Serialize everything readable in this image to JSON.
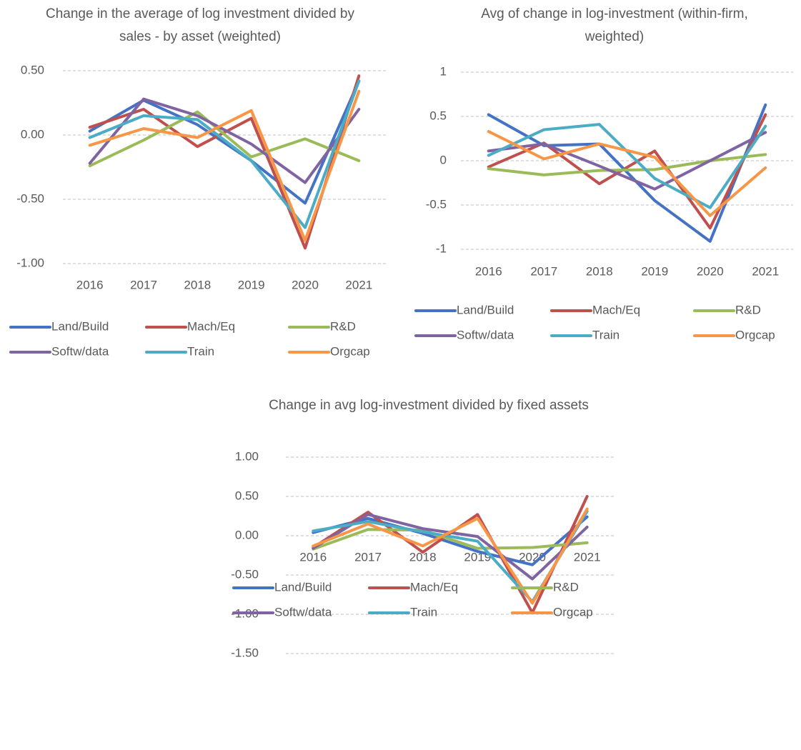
{
  "chart_data": [
    {
      "type": "line",
      "title": "Change in the average of log investment divided by sales - by asset (weighted)",
      "categories": [
        "2016",
        "2017",
        "2018",
        "2019",
        "2020",
        "2021"
      ],
      "ylim": [
        -1,
        0.5
      ],
      "yticks": [
        {
          "value": -1,
          "label": "-1.00"
        },
        {
          "value": -0.5,
          "label": "-0.50"
        },
        {
          "value": 0,
          "label": "0.00"
        },
        {
          "value": 0.5,
          "label": "0.50"
        }
      ],
      "grid": true,
      "series": [
        {
          "name": "Land/Build",
          "color": "#4472c4",
          "values": [
            0.03,
            0.27,
            0.08,
            -0.2,
            -0.53,
            0.42
          ]
        },
        {
          "name": "Mach/Eq",
          "color": "#c0504d",
          "values": [
            0.06,
            0.2,
            -0.09,
            0.13,
            -0.88,
            0.46
          ]
        },
        {
          "name": "R&D",
          "color": "#9bbb59",
          "values": [
            -0.24,
            -0.04,
            0.18,
            -0.17,
            -0.03,
            -0.2
          ]
        },
        {
          "name": "Softw/data",
          "color": "#8064a2",
          "values": [
            -0.22,
            0.28,
            0.15,
            -0.07,
            -0.37,
            0.2
          ]
        },
        {
          "name": "Train",
          "color": "#4bacc6",
          "values": [
            -0.02,
            0.15,
            0.12,
            -0.2,
            -0.72,
            0.42
          ]
        },
        {
          "name": "Orgcap",
          "color": "#f79646",
          "values": [
            -0.08,
            0.05,
            -0.02,
            0.19,
            -0.82,
            0.34
          ]
        }
      ]
    },
    {
      "type": "line",
      "title": "Avg of change in log-investment (within-firm, weighted)",
      "categories": [
        "2016",
        "2017",
        "2018",
        "2019",
        "2020",
        "2021"
      ],
      "ylim": [
        -1,
        1
      ],
      "yticks": [
        -1,
        -0.5,
        0,
        0.5,
        1
      ],
      "grid": true,
      "series": [
        {
          "name": "Land/Build",
          "color": "#4472c4",
          "values": [
            0.52,
            0.17,
            0.19,
            -0.45,
            -0.91,
            0.63
          ]
        },
        {
          "name": "Mach/Eq",
          "color": "#c0504d",
          "values": [
            -0.07,
            0.2,
            -0.26,
            0.11,
            -0.76,
            0.52
          ]
        },
        {
          "name": "R&D",
          "color": "#9bbb59",
          "values": [
            -0.09,
            -0.16,
            -0.11,
            -0.1,
            0.0,
            0.07
          ]
        },
        {
          "name": "Softw/data",
          "color": "#8064a2",
          "values": [
            0.11,
            0.19,
            -0.06,
            -0.32,
            0.0,
            0.32
          ]
        },
        {
          "name": "Train",
          "color": "#4bacc6",
          "values": [
            0.06,
            0.35,
            0.41,
            -0.2,
            -0.53,
            0.39
          ]
        },
        {
          "name": "Orgcap",
          "color": "#f79646",
          "values": [
            0.33,
            0.02,
            0.19,
            0.04,
            -0.62,
            -0.08
          ]
        }
      ]
    },
    {
      "type": "line",
      "title": "Change in avg log-investment divided by fixed assets",
      "categories": [
        "2016",
        "2017",
        "2018",
        "2019",
        "2020",
        "2021"
      ],
      "ylim": [
        -1.5,
        1
      ],
      "yticks": [
        {
          "value": -1.5,
          "label": "-1.50"
        },
        {
          "value": -1,
          "label": "-1.00"
        },
        {
          "value": -0.5,
          "label": "-0.50"
        },
        {
          "value": 0,
          "label": "0.00"
        },
        {
          "value": 0.5,
          "label": "0.50"
        },
        {
          "value": 1,
          "label": "1.00"
        }
      ],
      "grid": true,
      "series": [
        {
          "name": "Land/Build",
          "color": "#4472c4",
          "values": [
            0.04,
            0.22,
            0.03,
            -0.2,
            -0.37,
            0.24
          ]
        },
        {
          "name": "Mach/Eq",
          "color": "#c0504d",
          "values": [
            -0.15,
            0.3,
            -0.21,
            0.27,
            -0.98,
            0.5
          ]
        },
        {
          "name": "R&D",
          "color": "#9bbb59",
          "values": [
            -0.17,
            0.08,
            0.07,
            -0.16,
            -0.15,
            -0.09
          ]
        },
        {
          "name": "Softw/data",
          "color": "#8064a2",
          "values": [
            -0.16,
            0.27,
            0.09,
            -0.01,
            -0.55,
            0.11
          ]
        },
        {
          "name": "Train",
          "color": "#4bacc6",
          "values": [
            0.06,
            0.18,
            0.05,
            -0.07,
            -0.84,
            0.31
          ]
        },
        {
          "name": "Orgcap",
          "color": "#f79646",
          "values": [
            -0.13,
            0.15,
            -0.13,
            0.22,
            -0.86,
            0.34
          ]
        }
      ]
    }
  ]
}
